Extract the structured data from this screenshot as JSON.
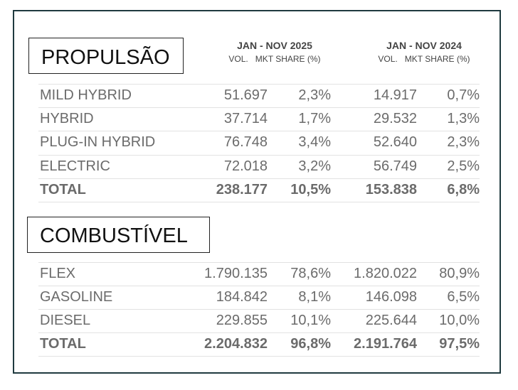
{
  "headers": {
    "period_2025": "JAN - NOV 2025",
    "period_2024": "JAN - NOV 2024",
    "sub_2025": "VOL.   MKT SHARE (%)",
    "sub_2024": "VOL.   MKT SHARE (%)"
  },
  "propulsion": {
    "title": "PROPULSÃO",
    "rows": [
      {
        "label": "MILD HYBRID",
        "vol_2025": "51.697",
        "share_2025": "2,3%",
        "vol_2024": "14.917",
        "share_2024": "0,7%"
      },
      {
        "label": "HYBRID",
        "vol_2025": "37.714",
        "share_2025": "1,7%",
        "vol_2024": "29.532",
        "share_2024": "1,3%"
      },
      {
        "label": "PLUG-IN HYBRID",
        "vol_2025": "76.748",
        "share_2025": "3,4%",
        "vol_2024": "52.640",
        "share_2024": "2,3%"
      },
      {
        "label": "ELECTRIC",
        "vol_2025": "72.018",
        "share_2025": "3,2%",
        "vol_2024": "56.749",
        "share_2024": "2,5%"
      }
    ],
    "total": {
      "label": "TOTAL",
      "vol_2025": "238.177",
      "share_2025": "10,5%",
      "vol_2024": "153.838",
      "share_2024": "6,8%"
    }
  },
  "fuel": {
    "title": "COMBUSTÍVEL",
    "rows": [
      {
        "label": "FLEX",
        "vol_2025": "1.790.135",
        "share_2025": "78,6%",
        "vol_2024": "1.820.022",
        "share_2024": "80,9%"
      },
      {
        "label": "GASOLINE",
        "vol_2025": "184.842",
        "share_2025": "8,1%",
        "vol_2024": "146.098",
        "share_2024": "6,5%"
      },
      {
        "label": "DIESEL",
        "vol_2025": "229.855",
        "share_2025": "10,1%",
        "vol_2024": "225.644",
        "share_2024": "10,0%"
      }
    ],
    "total": {
      "label": "TOTAL",
      "vol_2025": "2.204.832",
      "share_2025": "96,8%",
      "vol_2024": "2.191.764",
      "share_2024": "97,5%"
    }
  }
}
